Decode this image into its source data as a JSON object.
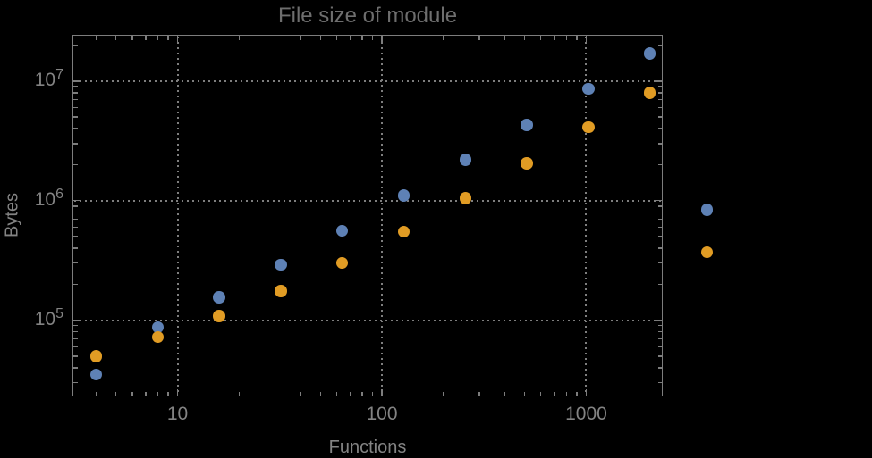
{
  "style": {
    "background": "#000000",
    "title_color": "#6e6e6e",
    "label_color": "#838383",
    "frame_color": "#7d7d7d",
    "grid_color": "#7e7e7e"
  },
  "chart_data": {
    "type": "scatter",
    "title": "File size of module",
    "xlabel": "Functions",
    "ylabel": "Bytes",
    "x_scale": "log10",
    "y_scale": "log10",
    "grid": "dotted lines at decade ticks, both axes",
    "legend": "none",
    "x_range": [
      3.09,
      2344
    ],
    "y_range": [
      23400,
      24000000
    ],
    "x_major_ticks": [
      10,
      100,
      1000
    ],
    "x_tick_labels": [
      "10",
      "100",
      "1000"
    ],
    "y_major_ticks": [
      100000,
      1000000,
      10000000
    ],
    "y_tick_labels": [
      {
        "mantissa": "10",
        "exponent": "5"
      },
      {
        "mantissa": "10",
        "exponent": "6"
      },
      {
        "mantissa": "10",
        "exponent": "7"
      }
    ],
    "series": [
      {
        "name": "blue",
        "color": "#5E81B5",
        "points": [
          [
            4,
            35000
          ],
          [
            8,
            87000
          ],
          [
            16,
            155000
          ],
          [
            32,
            290000
          ],
          [
            64,
            560000
          ],
          [
            128,
            1100000
          ],
          [
            256,
            2200000
          ],
          [
            512,
            4300000
          ],
          [
            1024,
            8600000
          ],
          [
            2048,
            17000000
          ],
          [
            3900,
            840000
          ]
        ]
      },
      {
        "name": "orange",
        "color": "#E19C24",
        "points": [
          [
            4,
            50000
          ],
          [
            8,
            72000
          ],
          [
            16,
            108000
          ],
          [
            32,
            175000
          ],
          [
            64,
            300000
          ],
          [
            128,
            550000
          ],
          [
            256,
            1050000
          ],
          [
            512,
            2050000
          ],
          [
            1024,
            4100000
          ],
          [
            2048,
            8000000
          ],
          [
            3900,
            370000
          ]
        ]
      }
    ]
  }
}
